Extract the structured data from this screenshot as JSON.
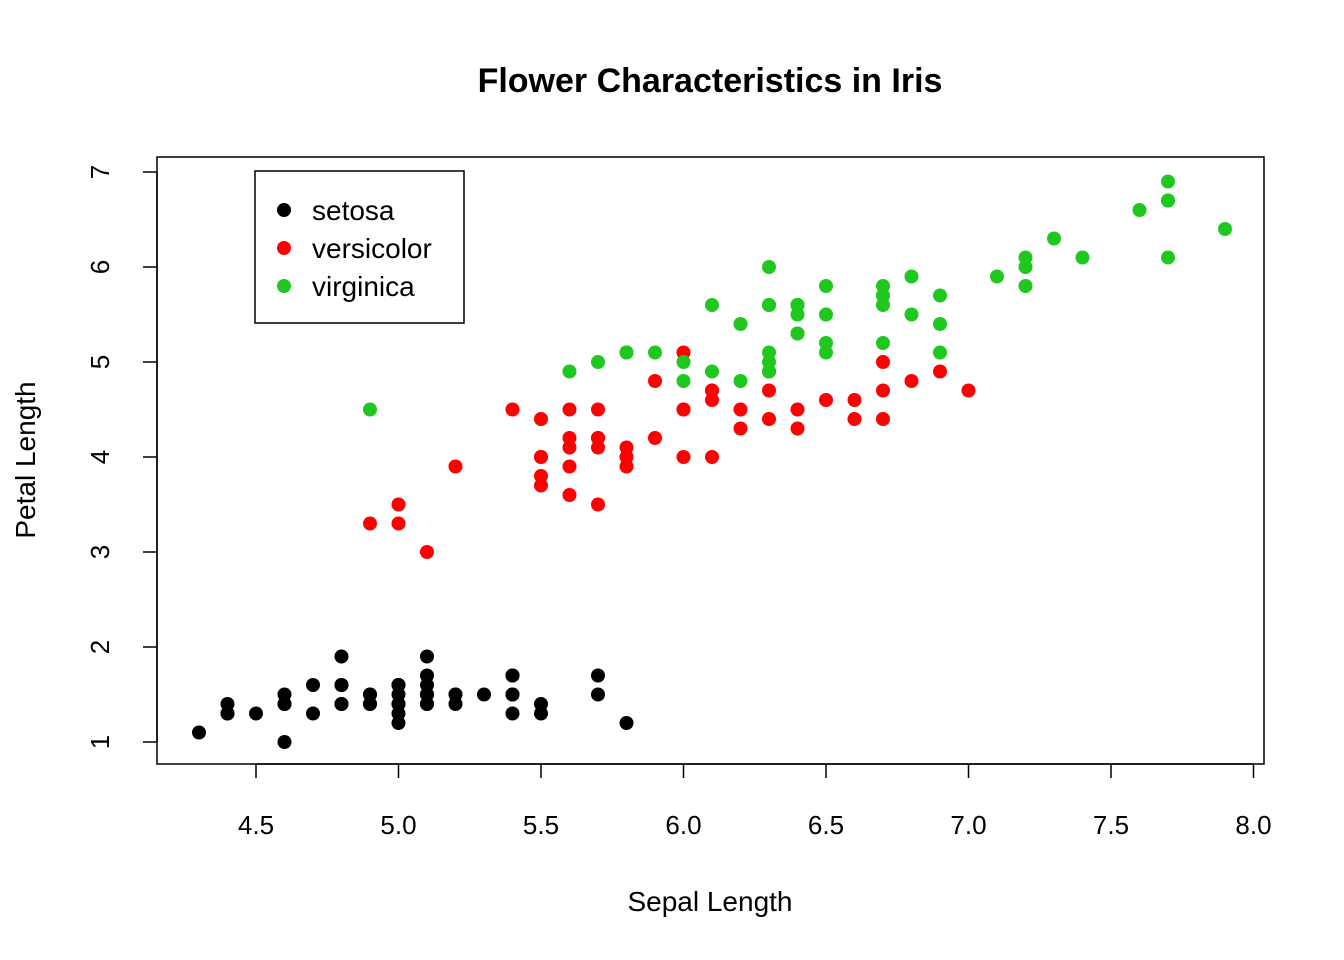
{
  "chart_data": {
    "type": "scatter",
    "title": "Flower Characteristics in Iris",
    "xlabel": "Sepal Length",
    "ylabel": "Petal Length",
    "xlim": [
      4.3,
      7.9
    ],
    "ylim": [
      1,
      6.9
    ],
    "xticks": [
      "4.5",
      "5.0",
      "5.5",
      "6.0",
      "6.5",
      "7.0",
      "7.5",
      "8.0"
    ],
    "yticks": [
      "1",
      "2",
      "3",
      "4",
      "5",
      "6",
      "7"
    ],
    "legend_position": "top-left",
    "grid": false,
    "series": [
      {
        "name": "setosa",
        "color": "#000000",
        "x": [
          5.1,
          4.9,
          4.7,
          4.6,
          5.0,
          5.4,
          4.6,
          5.0,
          4.4,
          4.9,
          5.4,
          4.8,
          4.8,
          4.3,
          5.8,
          5.7,
          5.4,
          5.1,
          5.7,
          5.1,
          5.4,
          5.1,
          4.6,
          5.1,
          4.8,
          5.0,
          5.0,
          5.2,
          5.2,
          4.7,
          4.8,
          5.4,
          5.2,
          5.5,
          4.9,
          5.0,
          5.5,
          4.9,
          4.4,
          5.1,
          5.0,
          4.5,
          4.4,
          5.0,
          5.1,
          4.8,
          5.1,
          4.6,
          5.3,
          5.0
        ],
        "y": [
          1.4,
          1.4,
          1.3,
          1.5,
          1.4,
          1.7,
          1.4,
          1.5,
          1.4,
          1.5,
          1.5,
          1.6,
          1.4,
          1.1,
          1.2,
          1.5,
          1.3,
          1.4,
          1.7,
          1.5,
          1.7,
          1.5,
          1.0,
          1.7,
          1.9,
          1.6,
          1.6,
          1.5,
          1.4,
          1.6,
          1.6,
          1.5,
          1.5,
          1.4,
          1.5,
          1.2,
          1.3,
          1.4,
          1.3,
          1.5,
          1.3,
          1.3,
          1.3,
          1.6,
          1.9,
          1.4,
          1.6,
          1.4,
          1.5,
          1.4
        ]
      },
      {
        "name": "versicolor",
        "color": "#ff0000",
        "x": [
          7.0,
          6.4,
          6.9,
          5.5,
          6.5,
          5.7,
          6.3,
          4.9,
          6.6,
          5.2,
          5.0,
          5.9,
          6.0,
          6.1,
          5.6,
          6.7,
          5.6,
          5.8,
          6.2,
          5.6,
          5.9,
          6.1,
          6.3,
          6.1,
          6.4,
          6.6,
          6.8,
          6.7,
          6.0,
          5.7,
          5.5,
          5.5,
          5.8,
          6.0,
          5.4,
          6.0,
          6.7,
          6.3,
          5.6,
          5.5,
          5.5,
          6.1,
          5.8,
          5.0,
          5.6,
          5.7,
          5.7,
          6.2,
          5.1,
          5.7
        ],
        "y": [
          4.7,
          4.5,
          4.9,
          4.0,
          4.6,
          4.5,
          4.7,
          3.3,
          4.6,
          3.9,
          3.5,
          4.2,
          4.0,
          4.7,
          3.6,
          4.4,
          4.5,
          4.1,
          4.5,
          3.9,
          4.8,
          4.0,
          4.9,
          4.7,
          4.3,
          4.4,
          4.8,
          5.0,
          4.5,
          3.5,
          3.8,
          3.7,
          3.9,
          5.1,
          4.5,
          4.5,
          4.7,
          4.4,
          4.1,
          4.0,
          4.4,
          4.6,
          4.0,
          3.3,
          4.2,
          4.2,
          4.2,
          4.3,
          3.0,
          4.1
        ]
      },
      {
        "name": "virginica",
        "color": "#1fc81f",
        "x": [
          6.3,
          5.8,
          7.1,
          6.3,
          6.5,
          7.6,
          4.9,
          7.3,
          6.7,
          7.2,
          6.5,
          6.4,
          6.8,
          5.7,
          5.8,
          6.4,
          6.5,
          7.7,
          7.7,
          6.0,
          6.9,
          5.6,
          7.7,
          6.3,
          6.7,
          7.2,
          6.2,
          6.1,
          6.4,
          7.2,
          7.4,
          7.9,
          6.4,
          6.3,
          6.1,
          7.7,
          6.3,
          6.4,
          6.0,
          6.9,
          6.7,
          6.9,
          5.8,
          6.8,
          6.7,
          6.7,
          6.3,
          6.5,
          6.2,
          5.9
        ],
        "y": [
          6.0,
          5.1,
          5.9,
          5.6,
          5.8,
          6.6,
          4.5,
          6.3,
          5.8,
          6.1,
          5.1,
          5.3,
          5.5,
          5.0,
          5.1,
          5.3,
          5.5,
          6.7,
          6.9,
          5.0,
          5.7,
          4.9,
          6.7,
          4.9,
          5.7,
          6.0,
          4.8,
          4.9,
          5.6,
          5.8,
          6.1,
          6.4,
          5.6,
          5.1,
          5.6,
          6.1,
          5.6,
          5.5,
          4.8,
          5.4,
          5.6,
          5.1,
          5.1,
          5.9,
          5.7,
          5.2,
          5.0,
          5.2,
          5.4,
          5.1
        ]
      }
    ]
  }
}
